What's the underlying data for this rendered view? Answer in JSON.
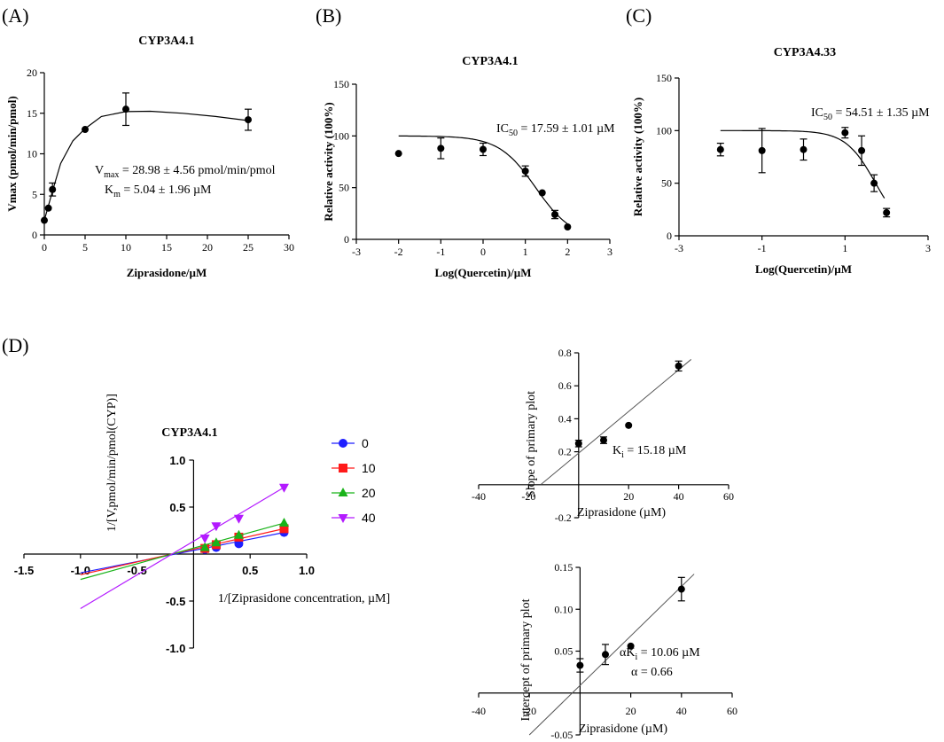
{
  "panels": {
    "A": {
      "label": "(A)",
      "chart_data": {
        "type": "scatter",
        "title": "CYP3A4.1",
        "xlabel": "Ziprasidone/µM",
        "ylabel": "Vmax (pmol/min/pmol)",
        "xlim": [
          0,
          30
        ],
        "ylim": [
          0,
          20
        ],
        "xticks": [
          "0",
          "5",
          "10",
          "15",
          "20",
          "25",
          "30"
        ],
        "yticks": [
          "0",
          "5",
          "10",
          "15",
          "20"
        ],
        "x": [
          0,
          0.5,
          1,
          5,
          10,
          25
        ],
        "y": [
          1.8,
          3.3,
          5.6,
          13.0,
          15.5,
          14.2
        ],
        "err": [
          0,
          0,
          0.8,
          0,
          2.0,
          1.3
        ],
        "annotation": {
          "line1_prefix": "V",
          "line1_sub": "max",
          "line1_suffix": " = 28.98 ± 4.56 pmol/min/pmol",
          "line2_prefix": "K",
          "line2_sub": "m",
          "line2_suffix": " = 5.04 ± 1.96 µM"
        }
      }
    },
    "B": {
      "label": "(B)",
      "chart_data": {
        "type": "scatter",
        "title": "CYP3A4.1",
        "xlabel": "Log(Quercetin)/µM",
        "ylabel": "Relative activity (100%)",
        "xlim": [
          -3,
          3
        ],
        "ylim": [
          0,
          150
        ],
        "xticks": [
          "-3",
          "-2",
          "-1",
          "0",
          "1",
          "2",
          "3"
        ],
        "yticks": [
          "0",
          "50",
          "100",
          "150"
        ],
        "x": [
          -2,
          -1,
          0,
          1,
          1.4,
          1.7,
          2
        ],
        "y": [
          83,
          88,
          87,
          66,
          45,
          24,
          12
        ],
        "err": [
          0,
          10,
          6,
          5,
          0,
          4,
          0
        ],
        "fit": {
          "top": 100,
          "bottom": 0,
          "log_ic50": 1.245,
          "hill": 1.0
        },
        "annotation": {
          "prefix": "IC",
          "sub": "50",
          "suffix": " = 17.59 ± 1.01 µM"
        }
      }
    },
    "C": {
      "label": "(C)",
      "chart_data": {
        "type": "scatter",
        "title": "CYP3A4.33",
        "xlabel": "Log(Quercetin)/µM",
        "ylabel": "Relative activity (100%)",
        "xlim": [
          -3,
          3
        ],
        "ylim": [
          0,
          150
        ],
        "xticks": [
          "-3",
          "-1",
          "1",
          "3"
        ],
        "yticks": [
          "0",
          "50",
          "100",
          "150"
        ],
        "x": [
          -2,
          -1,
          0,
          1,
          1.4,
          1.7,
          2
        ],
        "y": [
          82,
          81,
          82,
          98,
          81,
          50,
          22
        ],
        "err": [
          6,
          21,
          10,
          5,
          14,
          8,
          4
        ],
        "fit": {
          "top": 100,
          "bottom": 0,
          "log_ic50": 1.737,
          "hill": 1.2,
          "x_end": 1.95
        },
        "annotation": {
          "prefix": "IC",
          "sub": "50",
          "suffix": " = 54.51 ± 1.35 µM"
        }
      }
    },
    "D": {
      "label": "(D)",
      "chart_data": {
        "type": "line",
        "title": "CYP3A4.1",
        "xlabel": "1/[Ziprasidone concentration, µM]",
        "ylabel": "1/[V,pmol/min/pmol(CYP)]",
        "xlim": [
          -1.5,
          1.0
        ],
        "ylim": [
          -1.0,
          1.0
        ],
        "xticks": [
          "-1.5",
          "-1.0",
          "-0.5",
          "0.5",
          "1.0"
        ],
        "yticks": [
          "-1.0",
          "-0.5",
          "0.5",
          "1.0"
        ],
        "series": [
          {
            "name": "0",
            "color": "#1f1fff",
            "marker": "circle",
            "x": [
              0.1,
              0.2,
              0.4,
              0.8
            ],
            "y": [
              0.05,
              0.07,
              0.11,
              0.23
            ],
            "line_x": [
              -1.0,
              0.8
            ],
            "line_y": [
              -0.2,
              0.23
            ]
          },
          {
            "name": "10",
            "color": "#ff1a1a",
            "marker": "square",
            "x": [
              0.1,
              0.2,
              0.4,
              0.8
            ],
            "y": [
              0.06,
              0.1,
              0.18,
              0.27
            ],
            "line_x": [
              -1.0,
              0.8
            ],
            "line_y": [
              -0.22,
              0.27
            ]
          },
          {
            "name": "20",
            "color": "#19b319",
            "marker": "triangle",
            "x": [
              0.1,
              0.2,
              0.4,
              0.8
            ],
            "y": [
              0.07,
              0.12,
              0.2,
              0.33
            ],
            "line_x": [
              -1.0,
              0.8
            ],
            "line_y": [
              -0.27,
              0.33
            ]
          },
          {
            "name": "40",
            "color": "#b31aff",
            "marker": "tri-down",
            "x": [
              0.1,
              0.2,
              0.4,
              0.8
            ],
            "y": [
              0.17,
              0.3,
              0.38,
              0.71
            ],
            "line_x": [
              -1.0,
              0.8
            ],
            "line_y": [
              -0.58,
              0.71
            ]
          }
        ]
      }
    },
    "D_slope": {
      "chart_data": {
        "type": "scatter",
        "xlabel": "Ziprasidone (µM)",
        "ylabel": "Slope of primary plot",
        "xlim": [
          -40,
          60
        ],
        "ylim": [
          -0.2,
          0.8
        ],
        "xticks": [
          "-40",
          "-20",
          "20",
          "40",
          "60"
        ],
        "yticks": [
          "-0.2",
          "0.2",
          "0.4",
          "0.6",
          "0.8"
        ],
        "x": [
          0,
          10,
          20,
          40
        ],
        "y": [
          0.25,
          0.27,
          0.36,
          0.72
        ],
        "err": [
          0.02,
          0.02,
          0,
          0.03
        ],
        "fit_line": {
          "x": [
            -15.18,
            45
          ],
          "y": [
            0,
            0.76
          ]
        },
        "annotation": {
          "prefix": "K",
          "sub": "i",
          "suffix": " = 15.18 µM"
        }
      }
    },
    "D_intercept": {
      "chart_data": {
        "type": "scatter",
        "xlabel": "Ziprasidone (µM)",
        "ylabel": "Intercept of primary plot",
        "xlim": [
          -40,
          60
        ],
        "ylim": [
          -0.05,
          0.15
        ],
        "xticks": [
          "-40",
          "-20",
          "20",
          "40",
          "60"
        ],
        "yticks": [
          "-0.05",
          "0.05",
          "0.10",
          "0.15"
        ],
        "x": [
          0,
          10,
          20,
          40
        ],
        "y": [
          0.033,
          0.046,
          0.056,
          0.124
        ],
        "err": [
          0.008,
          0.012,
          0,
          0.014
        ],
        "fit_line": {
          "x": [
            -20,
            45
          ],
          "y": [
            -0.05,
            0.142
          ]
        },
        "annotation": {
          "prefix": "αK",
          "sub": "i",
          "suffix": " = 10.06 µM",
          "line2": "α = 0.66"
        }
      }
    }
  }
}
